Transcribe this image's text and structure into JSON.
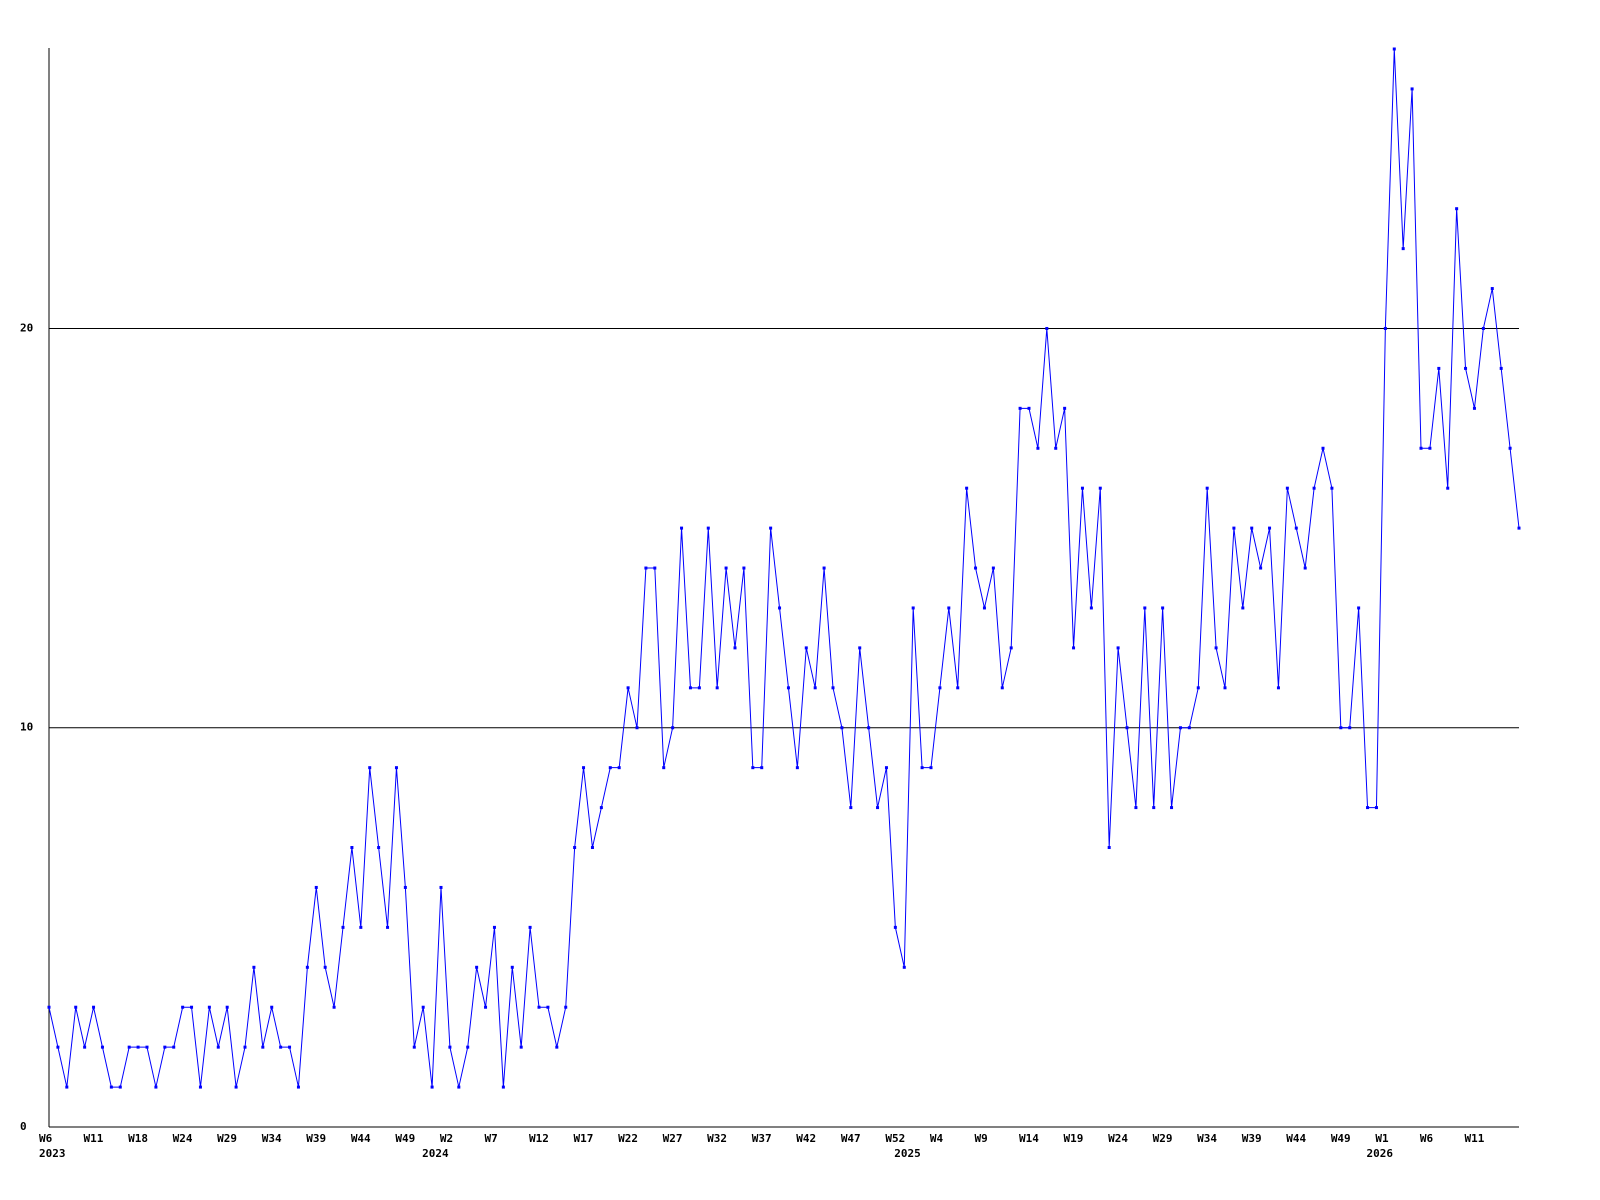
{
  "chart_data": {
    "type": "line",
    "categories": [
      "W6",
      null,
      null,
      null,
      null,
      "W11",
      null,
      null,
      null,
      null,
      "W18",
      null,
      null,
      null,
      null,
      "W24",
      null,
      null,
      null,
      null,
      "W29",
      null,
      null,
      null,
      null,
      "W34",
      null,
      null,
      null,
      null,
      "W39",
      null,
      null,
      null,
      null,
      "W44",
      null,
      null,
      null,
      null,
      "W49",
      null,
      null,
      null,
      null,
      "W2",
      null,
      null,
      null,
      null,
      "W7",
      null,
      null,
      null,
      null,
      "W12",
      null,
      null,
      null,
      null,
      "W17",
      null,
      null,
      null,
      null,
      "W22",
      null,
      null,
      null,
      null,
      "W27",
      null,
      null,
      null,
      null,
      "W32",
      null,
      null,
      null,
      null,
      "W37",
      null,
      null,
      null,
      null,
      "W42",
      null,
      null,
      null,
      null,
      "W47",
      null,
      null,
      null,
      null,
      "W52",
      null,
      null,
      null,
      null,
      "W4",
      null,
      null,
      null,
      null,
      "W9",
      null,
      null,
      null,
      null,
      "W14",
      null,
      null,
      null,
      null,
      "W19",
      null,
      null,
      null,
      null,
      "W24",
      null,
      null,
      null,
      null,
      "W29",
      null,
      null,
      null,
      null,
      "W34",
      null,
      null,
      null,
      null,
      "W39",
      null,
      null,
      null,
      null,
      "W44",
      null,
      null,
      null,
      null,
      "W49",
      null,
      null,
      null,
      null,
      "W1",
      null,
      null,
      null,
      null,
      "W6",
      null,
      null,
      null,
      null,
      "W11",
      null,
      null,
      null,
      null,
      null
    ],
    "year_labels": [
      "2023",
      null,
      null,
      null,
      null,
      null,
      null,
      null,
      null,
      null,
      null,
      null,
      null,
      null,
      null,
      null,
      null,
      null,
      null,
      null,
      null,
      null,
      null,
      null,
      null,
      null,
      null,
      null,
      null,
      null,
      null,
      null,
      null,
      null,
      null,
      null,
      null,
      null,
      null,
      null,
      null,
      null,
      null,
      "2024",
      null,
      null,
      null,
      null,
      null,
      null,
      null,
      null,
      null,
      null,
      null,
      null,
      null,
      null,
      null,
      null,
      null,
      null,
      null,
      null,
      null,
      null,
      null,
      null,
      null,
      null,
      null,
      null,
      null,
      null,
      null,
      null,
      null,
      null,
      null,
      null,
      null,
      null,
      null,
      null,
      null,
      null,
      null,
      null,
      null,
      null,
      null,
      null,
      null,
      null,
      null,
      null,
      "2025",
      null,
      null,
      null,
      null,
      null,
      null,
      null,
      null,
      null,
      null,
      null,
      null,
      null,
      null,
      null,
      null,
      null,
      null,
      null,
      null,
      null,
      null,
      null,
      null,
      null,
      null,
      null,
      null,
      null,
      null,
      null,
      null,
      null,
      null,
      null,
      null,
      null,
      null,
      null,
      null,
      null,
      null,
      null,
      null,
      null,
      null,
      null,
      null,
      null,
      null,
      null,
      null,
      "2026",
      null,
      null,
      null,
      null,
      null,
      null,
      null,
      null,
      null,
      null,
      null,
      null,
      null,
      null,
      null,
      null
    ],
    "series": [
      {
        "color": "#0000ff",
        "values": [
          3,
          2,
          1,
          3,
          2,
          3,
          2,
          1,
          1,
          2,
          2,
          2,
          1,
          2,
          2,
          3,
          3,
          1,
          3,
          2,
          3,
          1,
          2,
          4,
          2,
          3,
          2,
          2,
          1,
          4,
          6,
          4,
          3,
          5,
          7,
          5,
          9,
          7,
          5,
          9,
          6,
          2,
          3,
          1,
          6,
          2,
          1,
          2,
          4,
          3,
          5,
          1,
          4,
          2,
          5,
          3,
          3,
          2,
          3,
          7,
          9,
          7,
          8,
          9,
          9,
          11,
          10,
          14,
          14,
          9,
          10,
          15,
          11,
          11,
          15,
          11,
          14,
          12,
          14,
          9,
          9,
          15,
          13,
          11,
          9,
          12,
          11,
          14,
          11,
          10,
          8,
          12,
          10,
          8,
          9,
          5,
          4,
          13,
          9,
          9,
          11,
          13,
          11,
          16,
          14,
          13,
          14,
          11,
          12,
          18,
          18,
          17,
          20,
          17,
          18,
          12,
          16,
          13,
          16,
          7,
          12,
          10,
          8,
          13,
          8,
          13,
          8,
          10,
          10,
          11,
          16,
          12,
          11,
          15,
          13,
          15,
          14,
          15,
          11,
          16,
          15,
          14,
          16,
          17,
          16,
          10,
          10,
          13,
          8,
          8,
          20,
          27,
          22,
          26,
          17,
          17,
          19,
          16,
          23,
          19,
          18,
          20,
          21,
          19,
          17,
          15
        ]
      }
    ],
    "ylim": [
      0,
      27
    ],
    "yticks": [
      0,
      10,
      20
    ],
    "grid": true
  }
}
